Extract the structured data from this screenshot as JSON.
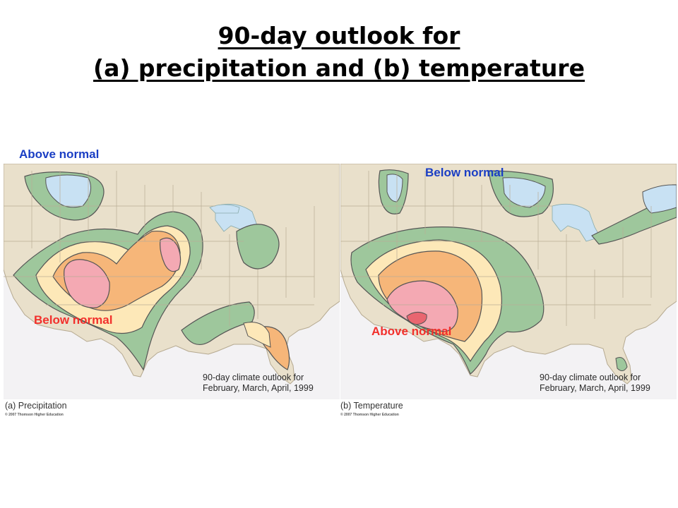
{
  "title": {
    "line1": "90-day outlook for",
    "line2": "(a) precipitation and (b) temperature"
  },
  "panel_a": {
    "label": "(a) Precipitation",
    "caption_line1": "90-day climate outlook for",
    "caption_line2": "February, March, April, 1999",
    "copyright": "© 2007 Thomson Higher Education",
    "callout_above": "Above normal",
    "callout_below": "Below normal"
  },
  "panel_b": {
    "label": "(b) Temperature",
    "caption_line1": "90-day climate outlook for",
    "caption_line2": "February, March, April, 1999",
    "copyright": "© 2007 Thomson Higher Education",
    "callout_above": "Above normal",
    "callout_below": "Below normal"
  },
  "colors": {
    "land": "#e9e0cb",
    "water": "#f3f2f4",
    "lakes": "#c8e1f3",
    "green": "#9ec79c",
    "light_orange": "#fde8b8",
    "orange": "#f6b679",
    "pink": "#f4a9b3",
    "red": "#e96670",
    "callout_blue": "#1a3ec4",
    "callout_red": "#f2302c"
  }
}
